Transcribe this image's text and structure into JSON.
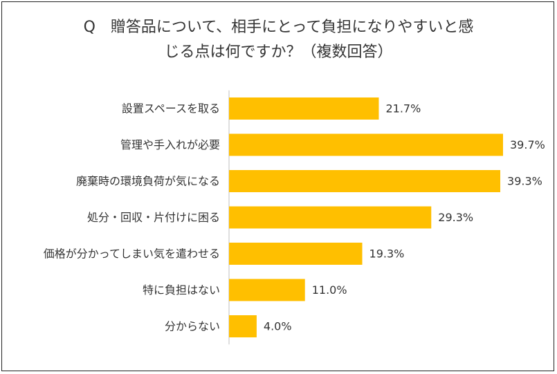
{
  "chart_data": {
    "type": "bar",
    "orientation": "horizontal",
    "title_lines": [
      "Q　贈答品について、相手にとって負担になりやすいと感",
      "じる点は何ですか？（複数回答）"
    ],
    "categories": [
      "設置スペースを取る",
      "管理や手入れが必要",
      "廃棄時の環境負荷が気になる",
      "処分・回収・片付けに困る",
      "価格が分かってしまい気を遣わせる",
      "特に負担はない",
      "分からない"
    ],
    "values": [
      21.7,
      39.7,
      39.3,
      29.3,
      19.3,
      11.0,
      4.0
    ],
    "value_labels": [
      "21.7%",
      "39.7%",
      "39.3%",
      "29.3%",
      "19.3%",
      "11.0%",
      "4.0%"
    ],
    "xlim": [
      0,
      40
    ],
    "grid": false,
    "legend": "none",
    "bar_color": "#FFBF00",
    "axis_color": "#BFBFBF"
  }
}
